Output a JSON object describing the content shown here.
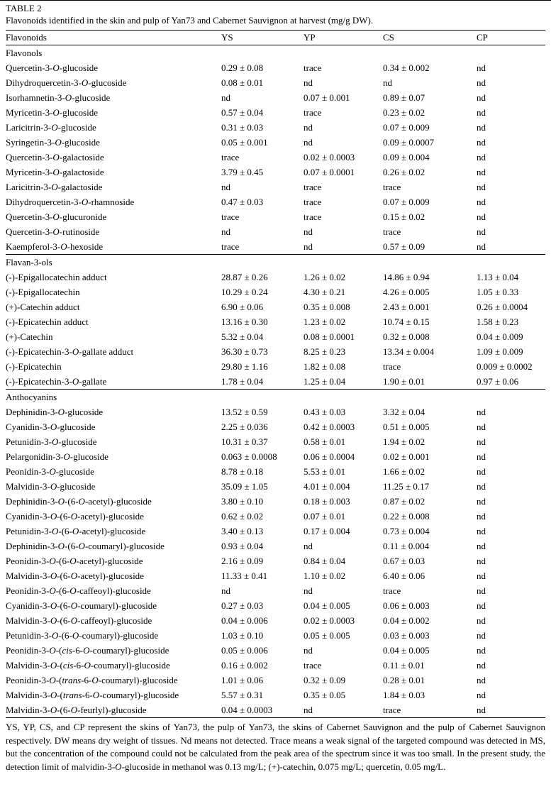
{
  "table": {
    "label": "TABLE 2",
    "caption": "Flavonoids identified in the skin and pulp of Yan73 and Cabernet Sauvignon at harvest (mg/g DW).",
    "columns": [
      "Flavonoids",
      "YS",
      "YP",
      "CS",
      "CP"
    ],
    "sections": [
      {
        "title": "Flavonols",
        "rows": [
          {
            "name": "Quercetin-3-*O*-glucoside",
            "values": [
              "0.29 ± 0.08",
              "trace",
              "0.34 ± 0.002",
              "nd"
            ]
          },
          {
            "name": "Dihydroquercetin-3-*O*-glucoside",
            "values": [
              "0.08 ± 0.01",
              "nd",
              "nd",
              "nd"
            ]
          },
          {
            "name": "Isorhamnetin-3-*O*-glucoside",
            "values": [
              "nd",
              "0.07 ± 0.001",
              "0.89 ± 0.07",
              "nd"
            ]
          },
          {
            "name": "Myricetin-3-*O*-glucoside",
            "values": [
              "0.57 ± 0.04",
              "trace",
              "0.23 ± 0.02",
              "nd"
            ]
          },
          {
            "name": "Laricitrin-3-*O*-glucoside",
            "values": [
              "0.31 ± 0.03",
              "nd",
              "0.07 ± 0.009",
              "nd"
            ]
          },
          {
            "name": "Syringetin-3-*O*-glucoside",
            "values": [
              "0.05 ± 0.001",
              "nd",
              "0.09 ± 0.0007",
              "nd"
            ]
          },
          {
            "name": "Quercetin-3-*O*-galactoside",
            "values": [
              "trace",
              "0.02 ± 0.0003",
              "0.09 ± 0.004",
              "nd"
            ]
          },
          {
            "name": "Myricetin-3-*O*-galactoside",
            "values": [
              "3.79 ± 0.45",
              "0.07 ± 0.0001",
              "0.26 ± 0.02",
              "nd"
            ]
          },
          {
            "name": "Laricitrin-3-*O*-galactoside",
            "values": [
              "nd",
              "trace",
              "trace",
              "nd"
            ]
          },
          {
            "name": "Dihydroquercetin-3-*O*-rhamnoside",
            "values": [
              "0.47 ± 0.03",
              "trace",
              "0.07 ± 0.009",
              "nd"
            ]
          },
          {
            "name": "Quercetin-3-*O*-glucuronide",
            "values": [
              "trace",
              "trace",
              "0.15 ± 0.02",
              "nd"
            ]
          },
          {
            "name": "Quercetin-3-*O*-rutinoside",
            "values": [
              "nd",
              "nd",
              "trace",
              "nd"
            ]
          },
          {
            "name": "Kaempferol-3-*O*-hexoside",
            "values": [
              "trace",
              "nd",
              "0.57 ± 0.09",
              "nd"
            ]
          }
        ]
      },
      {
        "title": "Flavan-3-ols",
        "rows": [
          {
            "name": "(-)-Epigallocatechin adduct",
            "values": [
              "28.87 ± 0.26",
              "1.26 ± 0.02",
              "14.86 ± 0.94",
              "1.13 ± 0.04"
            ]
          },
          {
            "name": "(-)-Epigallocatechin",
            "values": [
              "10.29 ± 0.24",
              "4.30 ± 0.21",
              "4.26 ± 0.005",
              "1.05 ± 0.33"
            ]
          },
          {
            "name": "(+)-Catechin adduct",
            "values": [
              "6.90 ± 0.06",
              "0.35 ± 0.008",
              "2.43 ± 0.001",
              "0.26 ± 0.0004"
            ]
          },
          {
            "name": "(-)-Epicatechin adduct",
            "values": [
              "13.16 ± 0.30",
              "1.23 ± 0.02",
              "10.74 ± 0.15",
              "1.58 ± 0.23"
            ]
          },
          {
            "name": "(+)-Catechin",
            "values": [
              "5.32 ± 0.04",
              "0.08 ± 0.0001",
              "0.32 ± 0.008",
              "0.04 ± 0.009"
            ]
          },
          {
            "name": "(-)-Epicatechin-3-*O*-gallate adduct",
            "values": [
              "36.30 ± 0.73",
              "8.25 ± 0.23",
              "13.34 ± 0.004",
              "1.09 ± 0.009"
            ]
          },
          {
            "name": "(-)-Epicatechin",
            "values": [
              "29.80 ± 1.16",
              "1.82 ± 0.08",
              "trace",
              "0.009 ± 0.0002"
            ]
          },
          {
            "name": "(-)-Epicatechin-3-*O*-gallate",
            "values": [
              "1.78 ± 0.04",
              "1.25 ± 0.04",
              "1.90 ± 0.01",
              "0.97 ± 0.06"
            ]
          }
        ]
      },
      {
        "title": "Anthocyanins",
        "rows": [
          {
            "name": "Dephinidin-3-*O*-glucoside",
            "values": [
              "13.52 ± 0.59",
              "0.43 ± 0.03",
              "3.32 ± 0.04",
              "nd"
            ]
          },
          {
            "name": "Cyanidin-3-*O*-glucoside",
            "values": [
              "2.25 ± 0.036",
              "0.42 ± 0.0003",
              "0.51 ± 0.005",
              "nd"
            ]
          },
          {
            "name": "Petunidin-3-*O*-glucoside",
            "values": [
              "10.31 ± 0.37",
              "0.58 ± 0.01",
              "1.94 ± 0.02",
              "nd"
            ]
          },
          {
            "name": "Pelargonidin-3-*O*-glucoside",
            "values": [
              "0.063 ± 0.0008",
              "0.06 ± 0.0004",
              "0.02 ± 0.001",
              "nd"
            ]
          },
          {
            "name": "Peonidin-3-*O*-glucoside",
            "values": [
              "8.78 ± 0.18",
              "5.53 ± 0.01",
              "1.66 ± 0.02",
              "nd"
            ]
          },
          {
            "name": "Malvidin-3-*O*-glucoside",
            "values": [
              "35.09 ± 1.05",
              "4.01 ± 0.004",
              "11.25 ± 0.17",
              "nd"
            ]
          },
          {
            "name": "Dephinidin-3-*O*-(6-*O*-acetyl)-glucoside",
            "values": [
              "3.80 ± 0.10",
              "0.18 ± 0.003",
              "0.87 ± 0.02",
              "nd"
            ]
          },
          {
            "name": "Cyanidin-3-*O*-(6-*O*-acetyl)-glucoside",
            "values": [
              "0.62 ± 0.02",
              "0.07 ± 0.01",
              "0.22 ± 0.008",
              "nd"
            ]
          },
          {
            "name": "Petunidin-3-*O*-(6-*O*-acetyl)-glucoside",
            "values": [
              "3.40 ± 0.13",
              "0.17 ± 0.004",
              "0.73 ± 0.004",
              "nd"
            ]
          },
          {
            "name": "Dephinidin-3-*O*-(6-*O*-coumaryl)-glucoside",
            "values": [
              "0.93 ± 0.04",
              "nd",
              "0.11 ± 0.004",
              "nd"
            ]
          },
          {
            "name": "Peonidin-3-*O*-(6-*O*-acetyl)-glucoside",
            "values": [
              "2.16 ± 0.09",
              "0.84 ± 0.04",
              "0.67 ± 0.03",
              "nd"
            ]
          },
          {
            "name": "Malvidin-3-*O*-(6-*O*-acetyl)-glucoside",
            "values": [
              "11.33 ± 0.41",
              "1.10 ± 0.02",
              "6.40 ± 0.06",
              "nd"
            ]
          },
          {
            "name": "Peonidin-3-*O*-(6-*O*-caffeoyl)-glucoside",
            "values": [
              "nd",
              "nd",
              "trace",
              "nd"
            ]
          },
          {
            "name": "Cyanidin-3-*O*-(6-*O*-coumaryl)-glucoside",
            "values": [
              "0.27 ± 0.03",
              "0.04 ± 0.005",
              "0.06 ± 0.003",
              "nd"
            ]
          },
          {
            "name": "Malvidin-3-*O*-(6-*O*-caffeoyl)-glucoside",
            "values": [
              "0.04 ± 0.006",
              "0.02 ± 0.0003",
              "0.04 ± 0.002",
              "nd"
            ]
          },
          {
            "name": "Petunidin-3-*O*-(6-*O*-coumaryl)-glucoside",
            "values": [
              "1.03 ± 0.10",
              "0.05 ± 0.005",
              "0.03 ± 0.003",
              "nd"
            ]
          },
          {
            "name": "Peonidin-3-*O*-(*cis*-6-*O*-coumaryl)-glucoside",
            "values": [
              "0.05 ± 0.006",
              "nd",
              "0.04 ± 0.005",
              "nd"
            ]
          },
          {
            "name": "Malvidin-3-*O*-(*cis*-6-*O*-coumaryl)-glucoside",
            "values": [
              "0.16 ± 0.002",
              "trace",
              "0.11 ± 0.01",
              "nd"
            ]
          },
          {
            "name": "Peonidin-3-*O*-(*trans*-6-*O*-coumaryl)-glucoside",
            "values": [
              "1.01 ± 0.06",
              "0.32 ± 0.09",
              "0.28 ± 0.01",
              "nd"
            ]
          },
          {
            "name": "Malvidin-3-*O*-(*trans*-6-*O*-coumaryl)-glucoside",
            "values": [
              "5.57 ± 0.31",
              "0.35 ± 0.05",
              "1.84 ± 0.03",
              "nd"
            ]
          },
          {
            "name": "Malvidin-3-*O*-(6-*O*-feurlyl)-glucoside",
            "values": [
              "0.04 ± 0.0003",
              "nd",
              "trace",
              "nd"
            ]
          }
        ]
      }
    ],
    "footnote": "YS, YP, CS, and CP represent the skins of Yan73, the pulp of Yan73, the skins of Cabernet Sauvignon and the pulp of Cabernet Sauvignon respectively. DW means dry weight of tissues. Nd means not detected. Trace means a weak signal of the targeted compound was detected in MS, but the concentration of the compound could not be calculated from the peak area of the spectrum since it was too small. In the present study, the detection limit of malvidin-3-*O*-glucoside in methanol was 0.13 mg/L; (+)-catechin, 0.075 mg/L; quercetin, 0.05 mg/L."
  }
}
